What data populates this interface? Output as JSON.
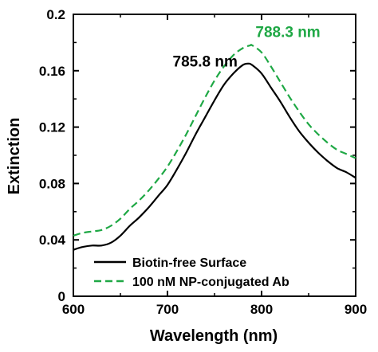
{
  "chart_data": {
    "type": "line",
    "xlabel": "Wavelength (nm)",
    "ylabel": "Extinction",
    "xlim": [
      600,
      900
    ],
    "ylim": [
      0,
      0.2
    ],
    "xticks": [
      600,
      700,
      800,
      900
    ],
    "xtick_labels": [
      "600",
      "700",
      "800",
      "900"
    ],
    "yticks": [
      0,
      0.04,
      0.08,
      0.12,
      0.16,
      0.2
    ],
    "ytick_labels": [
      "0",
      "0.04",
      "0.08",
      "0.12",
      "0.16",
      "0.2"
    ],
    "grid": false,
    "legend_position": "bottom-right",
    "series": [
      {
        "name": "Biotin-free Surface",
        "color": "#000000",
        "style": "solid",
        "x": [
          600,
          610,
          620,
          630,
          640,
          650,
          660,
          670,
          680,
          690,
          700,
          710,
          720,
          730,
          740,
          750,
          760,
          770,
          780,
          786,
          790,
          800,
          810,
          820,
          830,
          840,
          850,
          860,
          870,
          880,
          890,
          900
        ],
        "y": [
          0.033,
          0.035,
          0.036,
          0.036,
          0.038,
          0.043,
          0.05,
          0.056,
          0.063,
          0.071,
          0.079,
          0.09,
          0.102,
          0.115,
          0.127,
          0.139,
          0.15,
          0.158,
          0.164,
          0.165,
          0.164,
          0.158,
          0.148,
          0.138,
          0.127,
          0.117,
          0.109,
          0.102,
          0.096,
          0.091,
          0.088,
          0.084
        ]
      },
      {
        "name": "100 nM NP-conjugated Ab",
        "color": "#1fa845",
        "style": "dashed",
        "x": [
          600,
          610,
          620,
          630,
          640,
          650,
          660,
          670,
          680,
          690,
          700,
          710,
          720,
          730,
          740,
          750,
          760,
          770,
          780,
          788,
          790,
          800,
          810,
          820,
          830,
          840,
          850,
          860,
          870,
          880,
          890,
          900
        ],
        "y": [
          0.043,
          0.045,
          0.046,
          0.047,
          0.05,
          0.055,
          0.062,
          0.068,
          0.075,
          0.083,
          0.092,
          0.103,
          0.115,
          0.128,
          0.141,
          0.153,
          0.163,
          0.171,
          0.176,
          0.178,
          0.178,
          0.173,
          0.163,
          0.152,
          0.141,
          0.131,
          0.122,
          0.115,
          0.109,
          0.104,
          0.101,
          0.098
        ]
      }
    ],
    "annotations": [
      {
        "text": "785.8 nm",
        "x": 740,
        "y": 0.163,
        "color": "#000000"
      },
      {
        "text": "788.3 nm",
        "x": 828,
        "y": 0.184,
        "color": "#1fa845"
      }
    ]
  }
}
